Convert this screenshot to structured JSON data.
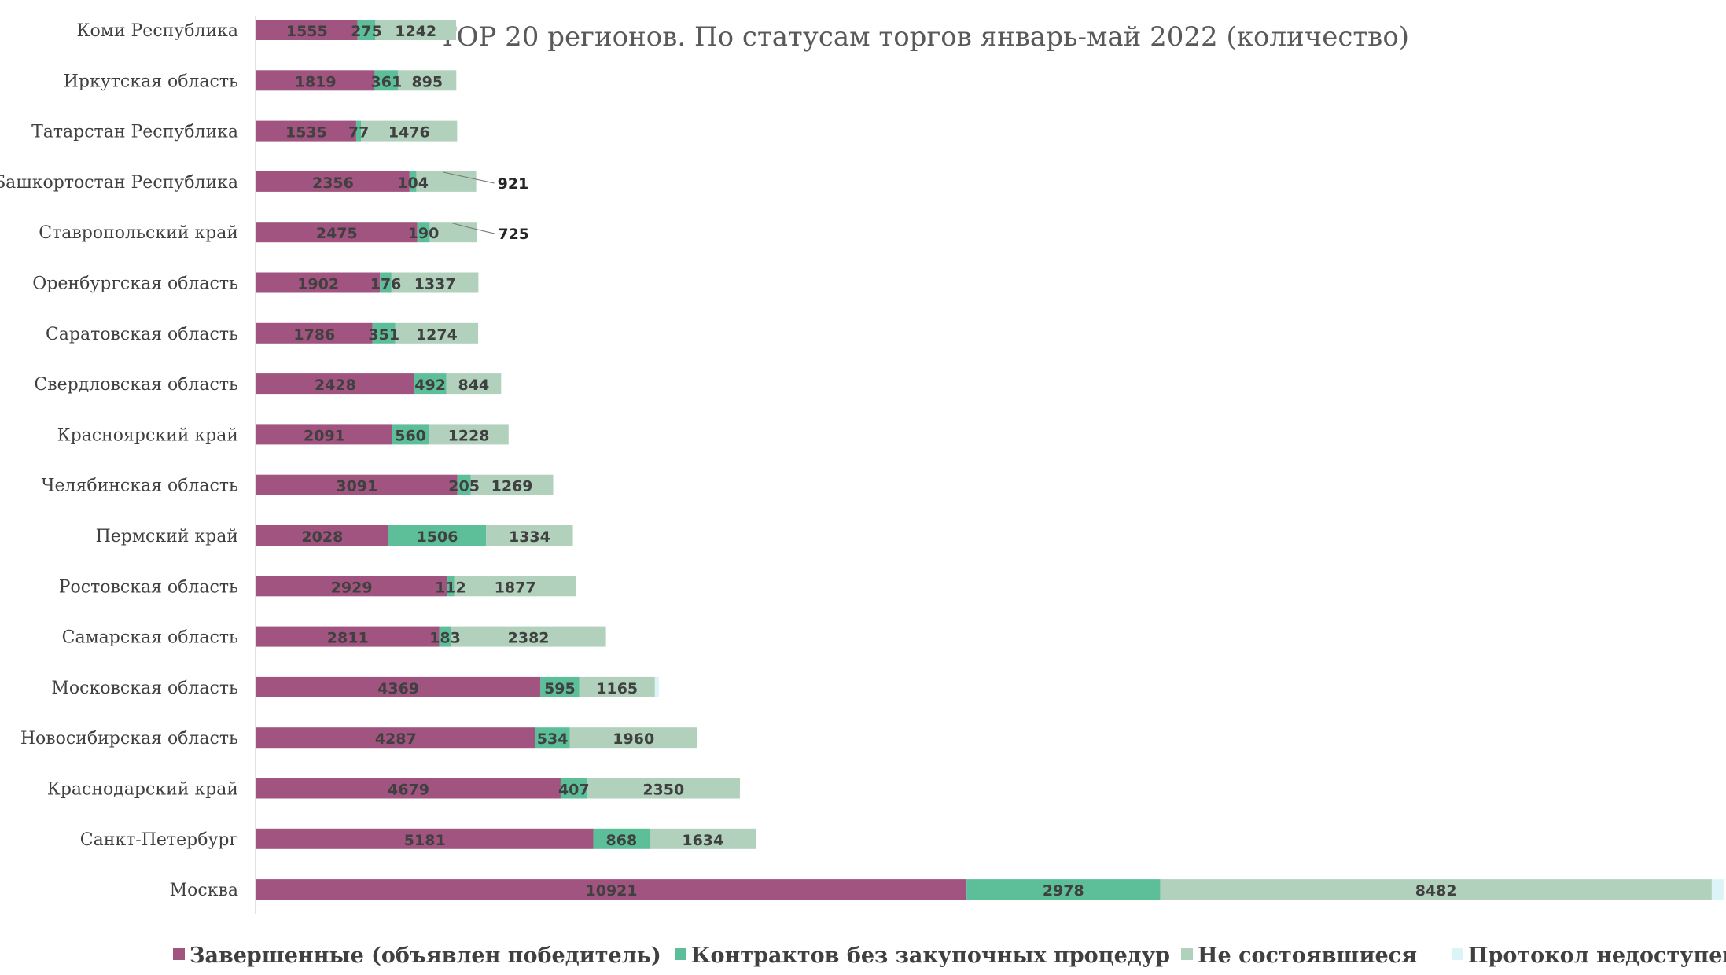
{
  "chart_data": {
    "type": "bar",
    "orientation": "horizontal",
    "stacked": true,
    "title": "TOP 20 регионов. По статусам торгов январь-май 2022 (количество)",
    "categories": [
      "Коми Республика",
      "Иркутская область",
      "Татарстан Республика",
      "Башкортостан Республика",
      "Ставропольский край",
      "Оренбургская область",
      "Саратовская область",
      "Свердловская область",
      "Красноярский край",
      "Челябинская область",
      "Пермский край",
      "Ростовская область",
      "Самарская область",
      "Московская область",
      "Новосибирская область",
      "Краснодарский край",
      "Санкт-Петербург",
      "Москва"
    ],
    "series": [
      {
        "name": "Завершенные (объявлен победитель)",
        "color": "#a0547f",
        "values": [
          1555,
          1819,
          1535,
          2356,
          2475,
          1902,
          1786,
          2428,
          2091,
          3091,
          2028,
          2929,
          2811,
          4369,
          4287,
          4679,
          5181,
          10921
        ]
      },
      {
        "name": "Контрактов без закупочных процедур",
        "color": "#5cbf9a",
        "values": [
          275,
          361,
          77,
          104,
          190,
          176,
          351,
          492,
          560,
          205,
          1506,
          112,
          183,
          595,
          534,
          407,
          868,
          2978
        ]
      },
      {
        "name": "Не состоявшиеся",
        "color": "#b1d1bc",
        "values": [
          1242,
          895,
          1476,
          921,
          725,
          1337,
          1274,
          844,
          1228,
          1269,
          1334,
          1877,
          2382,
          1165,
          1960,
          2350,
          1634,
          8482
        ]
      },
      {
        "name": "Протокол недоступен",
        "color": "#dcf4f8",
        "values": [
          null,
          null,
          null,
          null,
          null,
          null,
          null,
          null,
          null,
          null,
          null,
          null,
          null,
          60,
          null,
          null,
          null,
          180
        ]
      }
    ],
    "outside_labels": [
      {
        "category": "Башкортостан Республика",
        "series": "Не состоявшиеся"
      },
      {
        "category": "Ставропольский край",
        "series": "Не состоявшиеся"
      }
    ],
    "legend_position": "bottom",
    "grid": false
  }
}
